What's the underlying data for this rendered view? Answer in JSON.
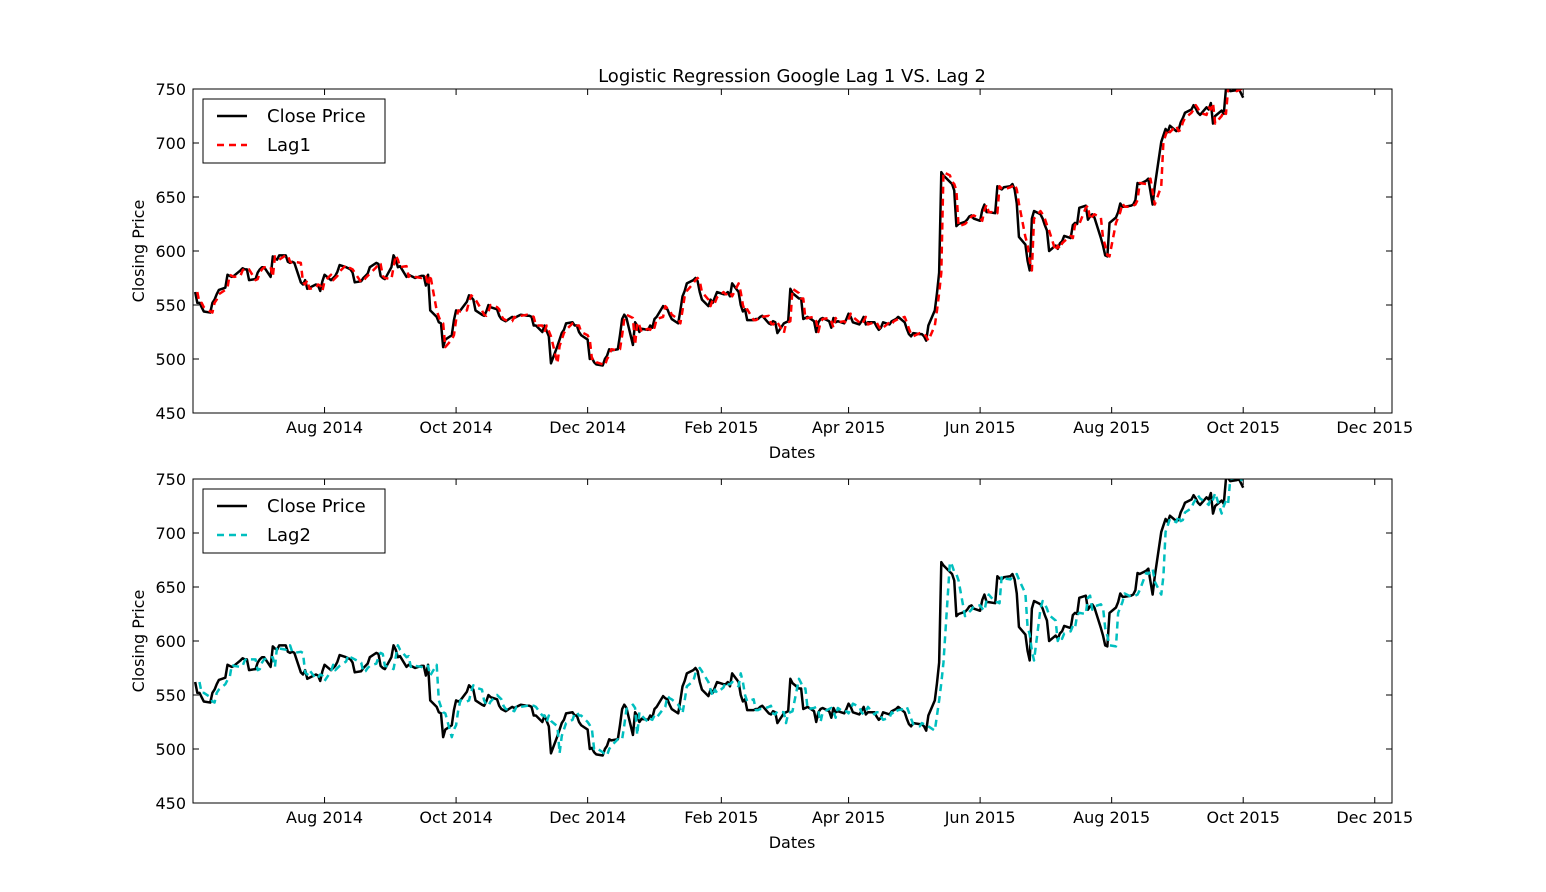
{
  "chart_data": [
    {
      "type": "line",
      "title": "Logistic Regression Google Lag 1 VS. Lag 2",
      "xlabel": "Dates",
      "ylabel": "Closing Price",
      "ylim": [
        450,
        750
      ],
      "xlim": [
        "2014-06-01",
        "2015-12-09"
      ],
      "yticks": [
        450,
        500,
        550,
        600,
        650,
        700,
        750
      ],
      "xticks": [
        {
          "date": "2014-08-01",
          "label": "Aug 2014"
        },
        {
          "date": "2014-10-01",
          "label": "Oct 2014"
        },
        {
          "date": "2014-12-01",
          "label": "Dec 2014"
        },
        {
          "date": "2015-02-01",
          "label": "Feb 2015"
        },
        {
          "date": "2015-04-01",
          "label": "Apr 2015"
        },
        {
          "date": "2015-06-01",
          "label": "Jun 2015"
        },
        {
          "date": "2015-08-01",
          "label": "Aug 2015"
        },
        {
          "date": "2015-10-01",
          "label": "Oct 2015"
        },
        {
          "date": "2015-12-01",
          "label": "Dec 2015"
        }
      ],
      "legend_position": "upper-left",
      "series": [
        {
          "name": "Close Price",
          "color": "#000000",
          "style": "solid",
          "lag": 0
        },
        {
          "name": "Lag1",
          "color": "#ff0000",
          "style": "dashed",
          "lag": 1
        }
      ]
    },
    {
      "type": "line",
      "title": "",
      "xlabel": "Dates",
      "ylabel": "Closing Price",
      "ylim": [
        450,
        750
      ],
      "xlim": [
        "2014-06-01",
        "2015-12-09"
      ],
      "yticks": [
        450,
        500,
        550,
        600,
        650,
        700,
        750
      ],
      "xticks": [
        {
          "date": "2014-08-01",
          "label": "Aug 2014"
        },
        {
          "date": "2014-10-01",
          "label": "Oct 2014"
        },
        {
          "date": "2014-12-01",
          "label": "Dec 2014"
        },
        {
          "date": "2015-02-01",
          "label": "Feb 2015"
        },
        {
          "date": "2015-04-01",
          "label": "Apr 2015"
        },
        {
          "date": "2015-06-01",
          "label": "Jun 2015"
        },
        {
          "date": "2015-08-01",
          "label": "Aug 2015"
        },
        {
          "date": "2015-10-01",
          "label": "Oct 2015"
        },
        {
          "date": "2015-12-01",
          "label": "Dec 2015"
        }
      ],
      "legend_position": "upper-left",
      "series": [
        {
          "name": "Close Price",
          "color": "#000000",
          "style": "solid",
          "lag": 0
        },
        {
          "name": "Lag2",
          "color": "#00bfbf",
          "style": "dashed",
          "lag": 2
        }
      ]
    }
  ],
  "close_price": {
    "start_date": "2014-06-02",
    "business_days": true,
    "values": [
      562,
      552,
      552,
      548,
      544,
      543,
      552,
      555,
      560,
      564,
      566,
      578,
      577,
      576,
      577,
      582,
      584,
      583,
      583,
      573,
      574,
      580,
      583,
      585,
      585,
      576,
      595,
      593,
      592,
      596,
      596,
      590,
      589,
      590,
      589,
      571,
      569,
      573,
      565,
      566,
      569,
      568,
      563,
      572,
      578,
      573,
      575,
      577,
      581,
      587,
      585,
      584,
      583,
      580,
      571,
      572,
      575,
      577,
      579,
      585,
      589,
      588,
      577,
      575,
      574,
      585,
      596,
      592,
      585,
      586,
      576,
      578,
      577,
      576,
      575,
      577,
      577,
      568,
      578,
      545,
      539,
      534,
      533,
      511,
      518,
      522,
      536,
      545,
      544,
      545,
      553,
      559,
      557,
      555,
      545,
      541,
      540,
      544,
      550,
      548,
      546,
      540,
      537,
      536,
      535,
      539,
      538,
      539,
      540,
      541,
      540,
      540,
      539,
      531,
      531,
      525,
      531,
      526,
      521,
      496,
      512,
      518,
      524,
      527,
      533,
      534,
      531,
      531,
      525,
      522,
      518,
      500,
      501,
      497,
      495,
      494,
      500,
      503,
      509,
      508,
      509,
      522,
      537,
      541,
      538,
      513,
      534,
      531,
      525,
      528,
      527,
      531,
      529,
      537,
      539,
      549,
      547,
      546,
      541,
      537,
      533,
      545,
      558,
      563,
      570,
      573,
      575,
      572,
      562,
      555,
      549,
      555,
      552,
      557,
      562,
      560,
      560,
      562,
      558,
      570,
      562,
      550,
      544,
      546,
      536,
      536,
      537,
      537,
      539,
      540,
      533,
      532,
      535,
      534,
      524,
      533,
      534,
      535,
      565,
      561,
      556,
      556,
      537,
      538,
      539,
      535,
      525,
      534,
      537,
      538,
      535,
      529,
      538,
      534,
      535,
      533,
      537,
      542,
      539,
      534,
      532,
      535,
      539,
      532,
      534,
      534,
      530,
      527,
      529,
      534,
      532,
      535,
      536,
      537,
      539,
      534,
      528,
      523,
      521,
      524,
      523,
      523,
      521,
      517,
      531,
      545,
      561,
      580,
      673,
      670,
      664,
      662,
      656,
      623,
      625,
      627,
      629,
      632,
      633,
      630,
      628,
      638,
      643,
      636,
      636,
      635,
      660,
      658,
      657,
      659,
      660,
      662,
      657,
      644,
      613,
      606,
      591,
      582,
      630,
      637,
      634,
      630,
      624,
      619,
      600,
      605,
      602,
      607,
      609,
      614,
      612,
      624,
      626,
      625,
      640,
      642,
      629,
      632,
      634,
      631,
      612,
      605,
      596,
      595,
      626,
      631,
      636,
      644,
      641,
      641,
      642,
      643,
      647,
      663,
      662,
      665,
      667,
      655,
      643,
      660,
      701,
      707,
      713,
      710,
      716,
      711,
      712,
      719,
      723,
      728,
      731,
      735,
      732,
      728,
      726,
      733,
      731,
      737,
      718,
      725,
      730,
      727,
      750,
      751,
      748,
      749,
      750,
      746,
      742
    ]
  }
}
